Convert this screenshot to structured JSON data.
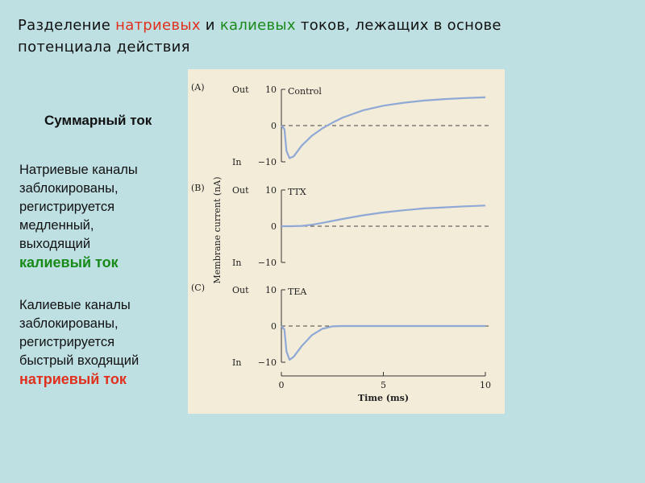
{
  "slide": {
    "title_parts": [
      "Разделение ",
      "натриевых",
      " и ",
      "калиевых",
      " токов, лежащих в основе потенциала действия"
    ],
    "summary_label": "Суммарный ток",
    "para1_lines": [
      "Натриевые каналы",
      "заблокированы,",
      "регистрируется",
      "медленный,",
      "выходящий"
    ],
    "para1_emphasis": "калиевый ток",
    "para2_lines": [
      "Калиевые каналы",
      "заблокированы,",
      "регистрируется",
      "быстрый входящий"
    ],
    "para2_emphasis": "натриевый ток",
    "colors": {
      "background": "#bfe0e3",
      "sodium": "#e0301e",
      "potassium": "#1a8a1a",
      "figure_bg": "#f3ecd9",
      "trace": "#8fa8d6"
    }
  },
  "chart_data": [
    {
      "type": "line",
      "panel_letter": "(A)",
      "series_label": "Control",
      "y_tick_labels": [
        "10",
        "0",
        "−10"
      ],
      "y_side_labels": [
        "Out",
        "",
        "In"
      ],
      "ylim": [
        -10,
        10
      ],
      "xlim": [
        0,
        10
      ],
      "x": [
        0,
        0.15,
        0.25,
        0.4,
        0.6,
        1.0,
        1.5,
        2.0,
        2.5,
        3.0,
        4.0,
        5.0,
        6.0,
        7.0,
        8.0,
        9.0,
        10.0
      ],
      "y": [
        0,
        -1,
        -7,
        -9,
        -8.5,
        -5.5,
        -2.8,
        -0.8,
        0.8,
        2.2,
        4.2,
        5.5,
        6.3,
        6.9,
        7.3,
        7.6,
        7.8
      ]
    },
    {
      "type": "line",
      "panel_letter": "(B)",
      "series_label": "TTX",
      "y_tick_labels": [
        "10",
        "0",
        "−10"
      ],
      "y_side_labels": [
        "Out",
        "",
        "In"
      ],
      "ylim": [
        -10,
        10
      ],
      "xlim": [
        0,
        10
      ],
      "x": [
        0,
        0.5,
        1.0,
        1.5,
        2.0,
        3.0,
        4.0,
        5.0,
        6.0,
        7.0,
        8.0,
        9.0,
        10.0
      ],
      "y": [
        0,
        0,
        0.1,
        0.4,
        0.9,
        2.0,
        3.0,
        3.8,
        4.4,
        4.9,
        5.2,
        5.5,
        5.7
      ]
    },
    {
      "type": "line",
      "panel_letter": "(C)",
      "series_label": "TEA",
      "y_tick_labels": [
        "10",
        "0",
        "−10"
      ],
      "y_side_labels": [
        "Out",
        "",
        "In"
      ],
      "ylim": [
        -10,
        10
      ],
      "xlim": [
        0,
        10
      ],
      "x": [
        0,
        0.15,
        0.25,
        0.4,
        0.6,
        1.0,
        1.5,
        2.0,
        2.5,
        3.0,
        5.0,
        10.0
      ],
      "y": [
        0,
        -1,
        -7,
        -9.3,
        -8.5,
        -5.5,
        -2.5,
        -0.8,
        -0.1,
        0,
        0,
        0
      ]
    }
  ],
  "shared_axis": {
    "ylabel": "Membrane current (nA)",
    "xlabel": "Time (ms)",
    "x_ticks": [
      0,
      5,
      10
    ],
    "x_tick_labels": [
      "0",
      "5",
      "10"
    ]
  }
}
